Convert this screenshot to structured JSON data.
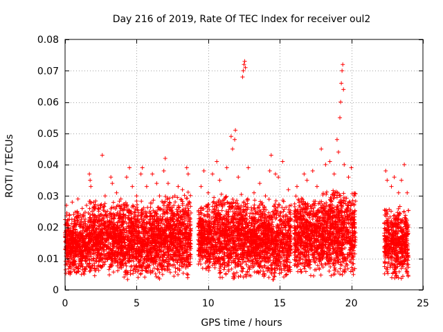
{
  "chart_data": {
    "type": "scatter",
    "title": "Day 216 of 2019, Rate Of TEC Index for receiver oul2",
    "xlabel": "GPS time / hours",
    "ylabel": "ROTI / TECUs",
    "xlim": [
      0,
      25
    ],
    "ylim": [
      0,
      0.08
    ],
    "xticks": [
      0,
      5,
      10,
      15,
      20,
      25
    ],
    "yticks": [
      0,
      0.01,
      0.02,
      0.03,
      0.04,
      0.05,
      0.06,
      0.07,
      0.08
    ],
    "xtick_labels": [
      "0",
      "5",
      "10",
      "15",
      "20",
      "25"
    ],
    "ytick_labels": [
      "0",
      "0.01",
      "0.02",
      "0.03",
      "0.04",
      "0.05",
      "0.06",
      "0.07",
      "0.08"
    ],
    "grid": true,
    "marker": "plus",
    "color": "#ff0000",
    "density_note": "Dense cloud of points mostly 0.003-0.03 TECU/s across 0-20.3 h and 22.3-24 h; gap 20.3-22.3 h",
    "series": [
      {
        "name": "oul2",
        "points": [
          [
            0.1,
            0.027
          ],
          [
            0.3,
            0.024
          ],
          [
            0.5,
            0.028
          ],
          [
            0.7,
            0.022
          ],
          [
            0.9,
            0.029
          ],
          [
            1.2,
            0.026
          ],
          [
            1.5,
            0.027
          ],
          [
            1.7,
            0.037
          ],
          [
            1.75,
            0.035
          ],
          [
            1.8,
            0.033
          ],
          [
            2.0,
            0.028
          ],
          [
            2.3,
            0.026
          ],
          [
            2.6,
            0.043
          ],
          [
            2.8,
            0.03
          ],
          [
            3.2,
            0.036
          ],
          [
            3.3,
            0.034
          ],
          [
            3.6,
            0.031
          ],
          [
            3.9,
            0.029
          ],
          [
            4.3,
            0.036
          ],
          [
            4.5,
            0.039
          ],
          [
            4.7,
            0.033
          ],
          [
            5.0,
            0.03
          ],
          [
            5.3,
            0.037
          ],
          [
            5.4,
            0.039
          ],
          [
            5.7,
            0.033
          ],
          [
            6.1,
            0.037
          ],
          [
            6.4,
            0.034
          ],
          [
            6.6,
            0.03
          ],
          [
            6.9,
            0.038
          ],
          [
            7.0,
            0.042
          ],
          [
            7.2,
            0.034
          ],
          [
            7.6,
            0.027
          ],
          [
            7.9,
            0.033
          ],
          [
            8.2,
            0.032
          ],
          [
            8.5,
            0.039
          ],
          [
            8.6,
            0.037
          ],
          [
            9.5,
            0.033
          ],
          [
            9.7,
            0.038
          ],
          [
            10.0,
            0.031
          ],
          [
            10.3,
            0.037
          ],
          [
            10.6,
            0.041
          ],
          [
            10.8,
            0.035
          ],
          [
            11.3,
            0.039
          ],
          [
            11.6,
            0.049
          ],
          [
            11.7,
            0.045
          ],
          [
            11.85,
            0.048
          ],
          [
            11.9,
            0.051
          ],
          [
            12.1,
            0.036
          ],
          [
            12.4,
            0.068
          ],
          [
            12.45,
            0.07
          ],
          [
            12.5,
            0.072
          ],
          [
            12.55,
            0.073
          ],
          [
            12.6,
            0.071
          ],
          [
            12.8,
            0.039
          ],
          [
            13.2,
            0.031
          ],
          [
            13.6,
            0.034
          ],
          [
            14.0,
            0.03
          ],
          [
            14.3,
            0.038
          ],
          [
            14.4,
            0.043
          ],
          [
            14.7,
            0.037
          ],
          [
            14.9,
            0.036
          ],
          [
            15.2,
            0.041
          ],
          [
            15.6,
            0.032
          ],
          [
            16.2,
            0.033
          ],
          [
            16.7,
            0.037
          ],
          [
            16.9,
            0.035
          ],
          [
            17.3,
            0.038
          ],
          [
            17.6,
            0.033
          ],
          [
            17.9,
            0.045
          ],
          [
            18.2,
            0.04
          ],
          [
            18.5,
            0.041
          ],
          [
            18.8,
            0.037
          ],
          [
            19.0,
            0.048
          ],
          [
            19.1,
            0.044
          ],
          [
            19.2,
            0.055
          ],
          [
            19.25,
            0.06
          ],
          [
            19.3,
            0.066
          ],
          [
            19.35,
            0.07
          ],
          [
            19.4,
            0.072
          ],
          [
            19.45,
            0.064
          ],
          [
            19.5,
            0.04
          ],
          [
            19.8,
            0.036
          ],
          [
            20.0,
            0.039
          ],
          [
            20.2,
            0.03
          ],
          [
            22.4,
            0.038
          ],
          [
            22.5,
            0.035
          ],
          [
            22.8,
            0.033
          ],
          [
            23.0,
            0.036
          ],
          [
            23.3,
            0.031
          ],
          [
            23.5,
            0.035
          ],
          [
            23.7,
            0.04
          ],
          [
            23.9,
            0.031
          ]
        ],
        "bulk_segments": [
          {
            "x": [
              0.0,
              1.7
            ],
            "ylow": 0.004,
            "yhigh": 0.025
          },
          {
            "x": [
              1.7,
              4.0
            ],
            "ylow": 0.004,
            "yhigh": 0.028
          },
          {
            "x": [
              4.0,
              7.0
            ],
            "ylow": 0.003,
            "yhigh": 0.028
          },
          {
            "x": [
              7.0,
              7.6
            ],
            "ylow": 0.004,
            "yhigh": 0.03
          },
          {
            "x": [
              7.6,
              8.8
            ],
            "ylow": 0.003,
            "yhigh": 0.03
          },
          {
            "x": [
              9.3,
              10.3
            ],
            "ylow": 0.005,
            "yhigh": 0.027
          },
          {
            "x": [
              10.3,
              12.8
            ],
            "ylow": 0.003,
            "yhigh": 0.03
          },
          {
            "x": [
              12.8,
              15.8
            ],
            "ylow": 0.003,
            "yhigh": 0.028
          },
          {
            "x": [
              16.0,
              18.0
            ],
            "ylow": 0.004,
            "yhigh": 0.029
          },
          {
            "x": [
              18.0,
              20.3
            ],
            "ylow": 0.003,
            "yhigh": 0.032
          },
          {
            "x": [
              22.3,
              24.0
            ],
            "ylow": 0.003,
            "yhigh": 0.026
          }
        ]
      }
    ]
  }
}
